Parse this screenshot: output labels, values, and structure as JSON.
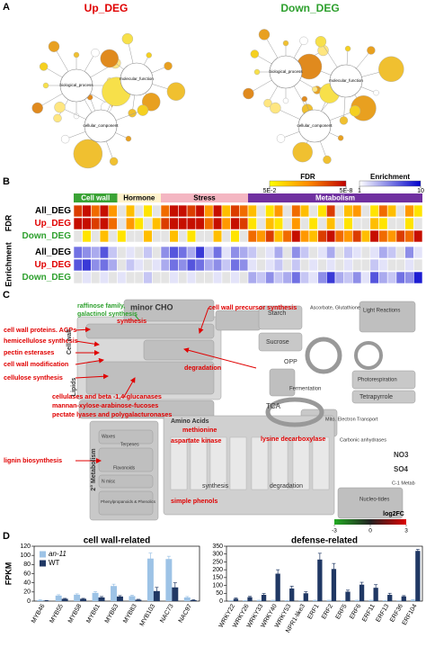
{
  "panel_a": {
    "letter": "A",
    "up_title": "Up_DEG",
    "down_title": "Down_DEG",
    "up_hubs": [
      "biological_process",
      "molecular_function",
      "cellular_component"
    ],
    "down_hubs": [
      "biological_process",
      "molecular_function",
      "cellular_component"
    ]
  },
  "panel_b": {
    "letter": "B",
    "groups": [
      {
        "name": "Cell wall",
        "columns": 5,
        "color": "#3aa335",
        "text_color": "#ffffff"
      },
      {
        "name": "Hormone",
        "columns": 5,
        "color": "#fff2cc",
        "text_color": "#000000"
      },
      {
        "name": "Stress",
        "columns": 10,
        "color": "#f4b6c2",
        "text_color": "#000000"
      },
      {
        "name": "Metabolism",
        "columns": 20,
        "color": "#7030a0",
        "text_color": "#ffffff"
      }
    ],
    "fdr": {
      "title": "FDR",
      "colors": [
        "#ffff00",
        "#ff8c00",
        "#c00000"
      ],
      "ticks": [
        {
          "value": 1.3,
          "label": "5E-2"
        },
        {
          "value": 7.3,
          "label": "5E-8"
        }
      ],
      "rows": [
        {
          "name": "All_DEG",
          "color": "#000000",
          "values": [
            6,
            7,
            5,
            7,
            4,
            0,
            3,
            0,
            2,
            0,
            5,
            7,
            7,
            6,
            7,
            4,
            7,
            3,
            6,
            5,
            3,
            0,
            2,
            4,
            0,
            5,
            3,
            0,
            2,
            6,
            0,
            3,
            4,
            0,
            2,
            5,
            3,
            0,
            4,
            2
          ]
        },
        {
          "name": "Up_DEG",
          "color": "#e00000",
          "values": [
            7,
            7,
            6,
            7,
            5,
            0,
            4,
            2,
            0,
            3,
            6,
            7,
            7,
            7,
            7,
            5,
            7,
            4,
            7,
            6,
            2,
            0,
            3,
            2,
            0,
            4,
            0,
            2,
            0,
            3,
            0,
            2,
            0,
            0,
            3,
            2,
            0,
            0,
            2,
            0
          ]
        },
        {
          "name": "Down_DEG",
          "color": "#2ea02e",
          "values": [
            0,
            2,
            0,
            3,
            0,
            2,
            0,
            0,
            3,
            0,
            0,
            3,
            0,
            2,
            0,
            0,
            3,
            0,
            2,
            0,
            5,
            4,
            6,
            3,
            5,
            7,
            4,
            3,
            6,
            7,
            5,
            4,
            6,
            3,
            7,
            5,
            4,
            6,
            5,
            7
          ]
        }
      ]
    },
    "enrichment": {
      "title": "Enrichment",
      "colors": [
        "#ffffff",
        "#0000cc"
      ],
      "ticks": [
        1,
        10
      ],
      "rows": [
        {
          "name": "All_DEG",
          "color": "#000000",
          "values": [
            6,
            5,
            4,
            7,
            3,
            0,
            2,
            0,
            3,
            0,
            5,
            7,
            6,
            4,
            8,
            3,
            6,
            2,
            5,
            4,
            3,
            0,
            2,
            4,
            0,
            5,
            3,
            0,
            2,
            4,
            0,
            3,
            2,
            0,
            2,
            4,
            3,
            0,
            5,
            2
          ]
        },
        {
          "name": "Up_DEG",
          "color": "#e00000",
          "values": [
            7,
            8,
            5,
            6,
            4,
            0,
            3,
            2,
            0,
            2,
            4,
            6,
            5,
            7,
            6,
            4,
            5,
            3,
            6,
            5,
            2,
            0,
            2,
            3,
            0,
            3,
            0,
            2,
            0,
            2,
            0,
            2,
            0,
            0,
            3,
            2,
            0,
            0,
            2,
            0
          ]
        },
        {
          "name": "Down_DEG",
          "color": "#2ea02e",
          "values": [
            0,
            2,
            0,
            2,
            0,
            2,
            0,
            0,
            3,
            0,
            0,
            2,
            0,
            2,
            0,
            0,
            2,
            0,
            2,
            0,
            4,
            3,
            5,
            3,
            4,
            6,
            3,
            2,
            5,
            8,
            4,
            3,
            5,
            2,
            7,
            4,
            3,
            6,
            5,
            9
          ]
        }
      ]
    }
  },
  "panel_c": {
    "letter": "C",
    "green_labels": [
      "raffinose family,",
      "galactinol synthesis"
    ],
    "red_labels": [
      "cell wall proteins. AGPs",
      "hemicellulose synthesis",
      "pectin esterases",
      "cell wall modification",
      "cellulose synthesis",
      "cell wall precursor synthesis",
      "synthesis",
      "degradation",
      "cellulases and beta -1,4-glucanases",
      "mannan-xylose-arabinose-fucoses",
      "pectate lyases and polygalacturonases",
      "methionine",
      "aspartate kinase",
      "lysine decarboxylase",
      "lignin biosynthesis",
      "simple phenols"
    ],
    "grey_labels": [
      "minor CHO",
      "Starch",
      "Sucrose",
      "OPP",
      "Ascorbate, Glutathione",
      "Light Reactions",
      "Photorespiration",
      "Tetrapyrrole",
      "Fermentation",
      "Mito. Electron Transport",
      "TCA",
      "Carbonic anhydrases",
      "NO3",
      "SO4",
      "C-1 Metab",
      "Amino Acids",
      "2° Metabolism",
      "Waxes",
      "Terpenes",
      "Flavonoids",
      "N misc",
      "Phenylpropanoids & Phenolics",
      "synthesis",
      "degradation",
      "Nucleo-tides",
      "Cell wall",
      "Lipids"
    ],
    "legend_title": "log2FC",
    "legend_colors": [
      "#22aa22",
      "#222222",
      "#dd0000"
    ],
    "legend_ticks": [
      -3,
      0,
      3
    ]
  },
  "panel_d": {
    "letter": "D"
  },
  "chart_data": [
    {
      "type": "bar",
      "title": "cell wall-related",
      "ylabel": "FPKM",
      "legend": "upper left",
      "categories": [
        "MYB46",
        "MYB55",
        "MYB58",
        "MYB61",
        "MYB63",
        "MYB83",
        "MYB103",
        "NAC73",
        "NAC97"
      ],
      "series": [
        {
          "name": "an-11",
          "color": "#9dc3e6",
          "values": [
            2,
            12,
            14,
            18,
            33,
            11,
            93,
            92,
            8
          ],
          "errors": [
            1,
            2,
            2,
            3,
            4,
            2,
            12,
            6,
            2
          ]
        },
        {
          "name": "WT",
          "color": "#203864",
          "values": [
            1,
            5,
            5,
            8,
            10,
            3,
            22,
            30,
            2
          ],
          "errors": [
            0.5,
            1,
            1,
            2,
            2,
            1,
            8,
            10,
            1
          ]
        }
      ],
      "ylim": [
        0,
        120
      ],
      "yticks": [
        0,
        20,
        40,
        60,
        80,
        100,
        120
      ]
    },
    {
      "type": "bar",
      "title": "defense-related",
      "categories": [
        "WRKY22",
        "WRKY26",
        "WRKY33",
        "WRKY40",
        "WRKY53",
        "NPR1-like3",
        "ERF1",
        "ERF2",
        "ERF5",
        "ERF6",
        "ERF11",
        "ERF13",
        "ERF36",
        "ERF104"
      ],
      "series": [
        {
          "color": "#9dc3e6",
          "values": [
            2,
            3,
            5,
            5,
            3,
            2,
            5,
            5,
            3,
            5,
            5,
            3,
            2,
            8
          ],
          "errors": [
            1,
            1,
            1,
            1,
            1,
            1,
            1,
            1,
            1,
            1,
            1,
            1,
            1,
            2
          ]
        },
        {
          "color": "#203864",
          "values": [
            15,
            25,
            40,
            175,
            80,
            50,
            265,
            205,
            60,
            105,
            85,
            40,
            30,
            320
          ],
          "errors": [
            5,
            5,
            8,
            25,
            15,
            10,
            40,
            35,
            10,
            15,
            20,
            10,
            5,
            10
          ]
        }
      ],
      "ylim": [
        0,
        350
      ],
      "yticks": [
        0,
        50,
        100,
        150,
        200,
        250,
        300,
        350
      ]
    }
  ]
}
